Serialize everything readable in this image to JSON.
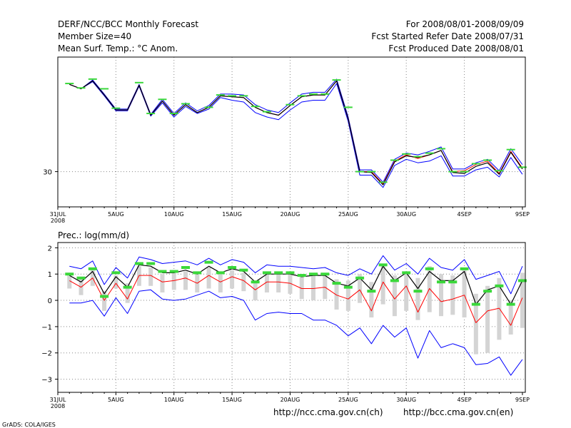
{
  "header": {
    "title": "DERF/NCC/BCC Monthly Forecast",
    "member_size": "Member Size=40",
    "variable": "Mean Surf. Temp.: °C Anom.",
    "period": "For 2008/08/01-2008/09/09",
    "fcst_started": "Fcst Started Refer Date 2008/07/31",
    "fcst_produced": "Fcst Produced Date 2008/08/01"
  },
  "footer": {
    "url_ncc": "http://ncc.cma.gov.cn(ch)",
    "url_bcc": "http://bcc.cma.gov.cn(en)",
    "credit": "GrADS: COLA/IGES"
  },
  "chart_data": [
    {
      "type": "line",
      "title": "Mean Surf. Temp.: °C Anom.",
      "x_tick_labels": [
        "31JUL",
        "5AUG",
        "10AUG",
        "15AUG",
        "20AUG",
        "25AUG",
        "30AUG",
        "4SEP",
        "9SEP"
      ],
      "x_tick_day_index": [
        0,
        5,
        10,
        15,
        20,
        25,
        30,
        35,
        40
      ],
      "year_label": "2008",
      "xlim": [
        0,
        40.25
      ],
      "ylim": [
        29.6,
        31.3
      ],
      "y_ticks": [
        30
      ],
      "y_tick_labels": [
        "30"
      ],
      "grid": true,
      "colors": {
        "mean": "#000000",
        "lower": "#0000ff",
        "upper": "#0000ff",
        "median": "#ff0000",
        "observed": "#3ad83a",
        "grid": "#888888"
      },
      "day_index": [
        1,
        2,
        3,
        4,
        5,
        6,
        7,
        8,
        9,
        10,
        11,
        12,
        13,
        14,
        15,
        16,
        17,
        18,
        19,
        20,
        21,
        22,
        23,
        24,
        25,
        26,
        27,
        28,
        29,
        30,
        31,
        32,
        33,
        34,
        35,
        36,
        37,
        38,
        39,
        40
      ],
      "series": [
        {
          "name": "ensemble mean",
          "values": [
            30.99,
            30.94,
            31.03,
            30.87,
            30.7,
            30.7,
            30.98,
            30.64,
            30.8,
            30.64,
            30.76,
            30.67,
            30.73,
            30.86,
            30.85,
            30.84,
            30.73,
            30.67,
            30.64,
            30.75,
            30.85,
            30.87,
            30.87,
            31.03,
            30.6,
            30.0,
            29.99,
            29.85,
            30.11,
            30.18,
            30.16,
            30.19,
            30.24,
            29.99,
            29.98,
            30.06,
            30.1,
            29.97,
            30.22,
            30.03
          ]
        },
        {
          "name": "ensemble lower",
          "values": [
            30.99,
            30.94,
            31.02,
            30.86,
            30.69,
            30.69,
            30.97,
            30.63,
            30.78,
            30.62,
            30.74,
            30.66,
            30.71,
            30.84,
            30.81,
            30.79,
            30.67,
            30.62,
            30.59,
            30.7,
            30.79,
            30.81,
            30.81,
            31.0,
            30.57,
            29.96,
            29.96,
            29.82,
            30.07,
            30.14,
            30.1,
            30.12,
            30.18,
            29.95,
            29.95,
            30.02,
            30.05,
            29.94,
            30.16,
            29.97
          ]
        },
        {
          "name": "ensemble upper",
          "values": [
            30.99,
            30.94,
            31.04,
            30.88,
            30.71,
            30.71,
            30.99,
            30.65,
            30.82,
            30.66,
            30.78,
            30.69,
            30.75,
            30.88,
            30.88,
            30.87,
            30.76,
            30.7,
            30.67,
            30.78,
            30.88,
            30.9,
            30.9,
            31.05,
            30.62,
            30.02,
            30.02,
            29.88,
            30.14,
            30.21,
            30.19,
            30.23,
            30.28,
            30.03,
            30.03,
            30.1,
            30.14,
            30.01,
            30.26,
            30.08
          ]
        },
        {
          "name": "ensemble median",
          "values": [
            30.99,
            30.94,
            31.03,
            30.87,
            30.7,
            30.7,
            30.98,
            30.64,
            30.8,
            30.64,
            30.76,
            30.67,
            30.73,
            30.86,
            30.85,
            30.84,
            30.73,
            30.67,
            30.64,
            30.75,
            30.85,
            30.87,
            30.87,
            31.03,
            30.6,
            30.0,
            30.0,
            29.86,
            30.12,
            30.19,
            30.15,
            30.19,
            30.24,
            30.0,
            30.01,
            30.08,
            30.12,
            29.98,
            30.23,
            30.04
          ]
        },
        {
          "name": "observed",
          "values": [
            31.0,
            30.95,
            31.05,
            30.94,
            30.72,
            null,
            31.01,
            30.66,
            30.82,
            30.66,
            30.77,
            null,
            30.73,
            30.87,
            30.86,
            30.86,
            30.74,
            30.68,
            null,
            30.76,
            30.86,
            30.88,
            30.88,
            31.04,
            30.73,
            30.0,
            30.0,
            29.88,
            30.13,
            30.2,
            30.17,
            30.21,
            30.26,
            30.0,
            30.0,
            30.09,
            30.13,
            30.01,
            30.25,
            30.05
          ]
        }
      ]
    },
    {
      "type": "line",
      "title": "Prec.: log(mm/d)",
      "x_tick_labels": [
        "31JUL",
        "5AUG",
        "10AUG",
        "15AUG",
        "20AUG",
        "25AUG",
        "30AUG",
        "4SEP",
        "9SEP"
      ],
      "x_tick_day_index": [
        0,
        5,
        10,
        15,
        20,
        25,
        30,
        35,
        40
      ],
      "year_label": "2008",
      "xlim": [
        0,
        40.25
      ],
      "ylim": [
        -3.5,
        2.2
      ],
      "y_ticks": [
        -3,
        -2,
        -1,
        0,
        1,
        2
      ],
      "y_tick_labels": [
        "−3",
        "−2",
        "−1",
        "0",
        "1",
        "2"
      ],
      "grid": true,
      "colors": {
        "mean": "#000000",
        "min": "#0000ff",
        "max": "#0000ff",
        "median": "#ff0000",
        "observed": "#3ad83a",
        "range_bar": "#d4d4d4",
        "grid": "#888888"
      },
      "day_index": [
        1,
        2,
        3,
        4,
        5,
        6,
        7,
        8,
        9,
        10,
        11,
        12,
        13,
        14,
        15,
        16,
        17,
        18,
        19,
        20,
        21,
        22,
        23,
        24,
        25,
        26,
        27,
        28,
        29,
        30,
        31,
        32,
        33,
        34,
        35,
        36,
        37,
        38,
        39,
        40
      ],
      "series": [
        {
          "name": "ensemble mean",
          "values": [
            0.95,
            0.7,
            1.1,
            0.25,
            0.9,
            0.5,
            1.35,
            1.3,
            1.05,
            1.05,
            1.15,
            1.0,
            1.3,
            1.05,
            1.2,
            1.1,
            0.7,
            1.0,
            1.0,
            1.0,
            0.9,
            0.95,
            0.95,
            0.65,
            0.55,
            0.85,
            0.4,
            1.3,
            0.75,
            1.05,
            0.45,
            1.1,
            0.75,
            0.75,
            1.1,
            -0.15,
            0.4,
            0.55,
            -0.15,
            0.75
          ]
        },
        {
          "name": "ensemble max",
          "values": [
            1.3,
            1.2,
            1.5,
            0.6,
            1.25,
            0.85,
            1.65,
            1.55,
            1.4,
            1.45,
            1.5,
            1.35,
            1.6,
            1.35,
            1.55,
            1.45,
            1.05,
            1.35,
            1.3,
            1.3,
            1.25,
            1.2,
            1.25,
            1.05,
            0.95,
            1.2,
            1.0,
            1.7,
            1.15,
            1.4,
            1.0,
            1.6,
            1.25,
            1.15,
            1.55,
            0.8,
            0.95,
            1.1,
            0.25,
            1.3
          ]
        },
        {
          "name": "ensemble min",
          "values": [
            -0.1,
            -0.1,
            0.0,
            -0.6,
            0.1,
            -0.5,
            0.35,
            0.4,
            0.05,
            0.0,
            0.05,
            0.2,
            0.35,
            0.1,
            0.15,
            0.0,
            -0.75,
            -0.5,
            -0.45,
            -0.5,
            -0.5,
            -0.75,
            -0.75,
            -0.95,
            -1.35,
            -1.05,
            -1.65,
            -0.95,
            -1.4,
            -1.05,
            -2.2,
            -1.15,
            -1.8,
            -1.65,
            -1.8,
            -2.45,
            -2.4,
            -2.15,
            -2.85,
            -2.25
          ]
        },
        {
          "name": "ensemble median",
          "values": [
            0.75,
            0.5,
            0.85,
            0.0,
            0.65,
            0.05,
            0.95,
            0.95,
            0.7,
            0.75,
            0.85,
            0.65,
            0.95,
            0.7,
            0.9,
            0.75,
            0.4,
            0.7,
            0.7,
            0.65,
            0.45,
            0.45,
            0.5,
            0.2,
            0.05,
            0.4,
            -0.4,
            0.7,
            0.05,
            0.55,
            -0.45,
            0.45,
            -0.05,
            0.05,
            0.2,
            -0.85,
            -0.4,
            -0.3,
            -0.95,
            0.1
          ]
        },
        {
          "name": "observed",
          "values": [
            1.0,
            0.85,
            1.2,
            0.15,
            1.05,
            0.5,
            1.4,
            1.4,
            1.1,
            1.1,
            1.25,
            1.05,
            1.45,
            1.05,
            1.25,
            1.15,
            0.7,
            1.05,
            1.05,
            1.05,
            0.95,
            1.0,
            1.0,
            0.65,
            0.5,
            0.85,
            0.35,
            1.35,
            0.75,
            1.05,
            0.35,
            1.2,
            0.7,
            0.7,
            1.2,
            -0.15,
            0.35,
            0.55,
            -0.15,
            0.75
          ]
        },
        {
          "name": "range bar top",
          "values": [
            1.05,
            0.85,
            1.15,
            0.35,
            0.95,
            0.65,
            1.3,
            1.25,
            1.0,
            1.05,
            1.1,
            1.0,
            1.25,
            1.0,
            1.15,
            1.05,
            0.75,
            1.0,
            1.0,
            1.0,
            1.0,
            1.0,
            1.0,
            0.8,
            0.75,
            1.0,
            0.7,
            1.4,
            0.95,
            1.1,
            0.85,
            1.3,
            1.0,
            0.95,
            1.2,
            0.25,
            0.55,
            0.85,
            0.0,
            1.05
          ]
        },
        {
          "name": "range bar bottom",
          "values": [
            0.45,
            0.2,
            0.55,
            -0.4,
            0.45,
            -0.1,
            0.55,
            0.55,
            0.3,
            0.4,
            0.4,
            0.3,
            0.45,
            0.3,
            0.45,
            0.35,
            0.0,
            0.3,
            0.3,
            0.25,
            0.05,
            0.0,
            0.05,
            -0.35,
            -0.4,
            -0.1,
            -0.65,
            -0.15,
            -0.6,
            -0.4,
            -0.75,
            -0.45,
            -0.6,
            -0.55,
            -0.65,
            -2.05,
            -2.0,
            -1.5,
            -1.3,
            -1.05
          ]
        }
      ]
    }
  ]
}
